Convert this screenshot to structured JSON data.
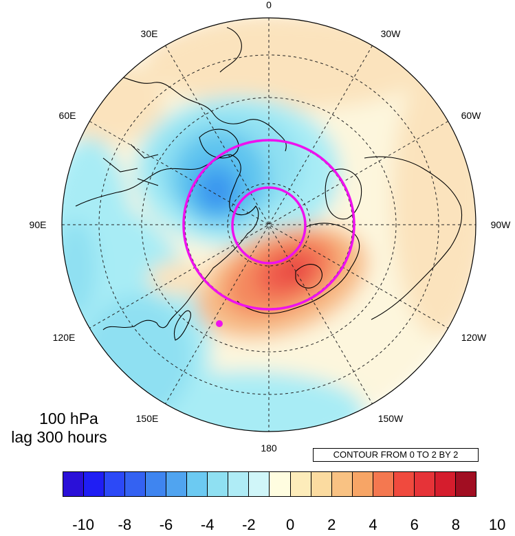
{
  "map": {
    "projection": "north polar stereographic",
    "longitude_labels": {
      "lon_0": "0",
      "lon_30e": "30E",
      "lon_60e": "60E",
      "lon_90e": "90E",
      "lon_120e": "120E",
      "lon_150e": "150E",
      "lon_180": "180",
      "lon_150w": "150W",
      "lon_120w": "120W",
      "lon_90w": "90W",
      "lon_60w": "60W",
      "lon_30w": "30W"
    },
    "contour_colors": [
      "#ffffff",
      "#fdf6dd",
      "#fbe3bd",
      "#a8ecf5",
      "#8fe0f2",
      "#5fc4ef",
      "#40a3ef",
      "#3889ef",
      "#f7bb86",
      "#f48a5e",
      "#f05d4d",
      "#e33d3a"
    ],
    "highlight_color": "#ee11ee"
  },
  "panel": {
    "level": "100 hPa",
    "lag": "lag 300 hours"
  },
  "contour_info": "CONTOUR FROM 0 TO 2 BY 2",
  "colorbar": {
    "colors": [
      "#2a10d8",
      "#1f1ef4",
      "#2c49f7",
      "#3462f2",
      "#3f85f0",
      "#50a4f0",
      "#6ccaf2",
      "#8fe0f2",
      "#afecf6",
      "#d0f6f9",
      "#fffde0",
      "#fdecba",
      "#fbdba0",
      "#f9c283",
      "#f7a566",
      "#f47850",
      "#f04a3e",
      "#e63338",
      "#d51d2d",
      "#a10e22"
    ],
    "labels": [
      "-10",
      "-8",
      "-6",
      "-4",
      "-2",
      "0",
      "2",
      "4",
      "6",
      "8",
      "10"
    ]
  }
}
